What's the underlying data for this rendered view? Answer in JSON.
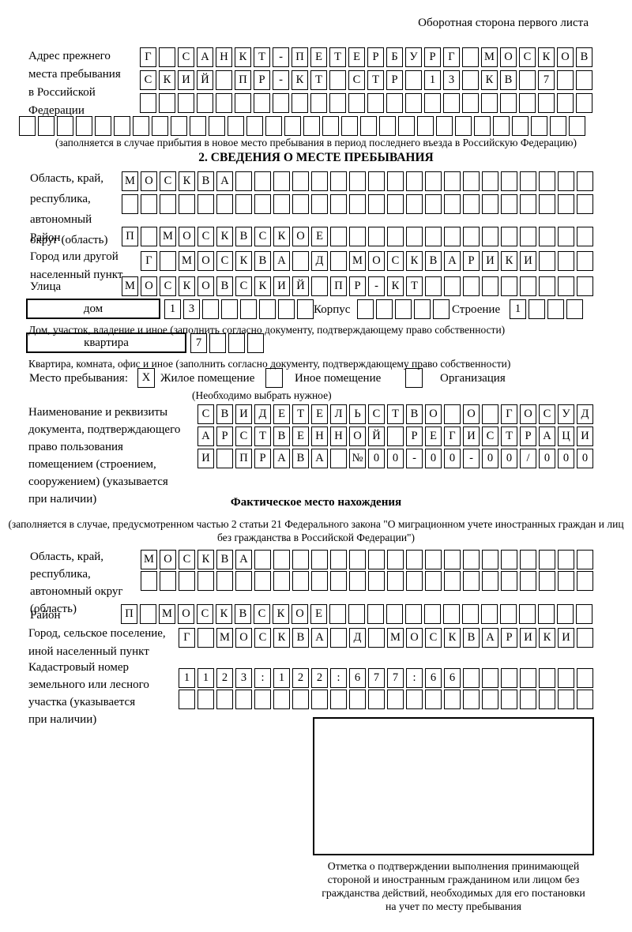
{
  "colors": {
    "ink": "#000000",
    "paper": "#ffffff"
  },
  "page": {
    "corner_note": "Оборотная сторона первого листа"
  },
  "prev_address": {
    "label_lines": [
      "Адрес прежнего",
      "места пребывания",
      "в Российской",
      "Федерации"
    ],
    "rows": [
      [
        "Г",
        "",
        "С",
        "А",
        "Н",
        "К",
        "Т",
        "-",
        "П",
        "Е",
        "Т",
        "Е",
        "Р",
        "Б",
        "У",
        "Р",
        "Г",
        "",
        "М",
        "О",
        "С",
        "К",
        "О",
        "В"
      ],
      [
        "С",
        "К",
        "И",
        "Й",
        "",
        "П",
        "Р",
        "-",
        "К",
        "Т",
        "",
        "С",
        "Т",
        "Р",
        "",
        "1",
        "3",
        "",
        "К",
        "В",
        "",
        "7",
        "",
        ""
      ],
      [
        "",
        "",
        "",
        "",
        "",
        "",
        "",
        "",
        "",
        "",
        "",
        "",
        "",
        "",
        "",
        "",
        "",
        "",
        "",
        "",
        "",
        "",
        "",
        ""
      ]
    ],
    "row4": [
      "",
      "",
      "",
      "",
      "",
      "",
      "",
      "",
      "",
      "",
      "",
      "",
      "",
      "",
      "",
      "",
      "",
      "",
      "",
      "",
      "",
      "",
      "",
      "",
      "",
      "",
      "",
      "",
      "",
      ""
    ],
    "note": "(заполняется в случае прибытия в новое место пребывания в период последнего въезда в Российскую Федерацию)"
  },
  "section2": {
    "title": "2. СВЕДЕНИЯ О МЕСТЕ ПРЕБЫВАНИЯ",
    "region": {
      "label_lines": [
        "Область, край,",
        "республика,",
        "автономный",
        "округ (область)"
      ],
      "rows": [
        [
          "М",
          "О",
          "С",
          "К",
          "В",
          "А",
          "",
          "",
          "",
          "",
          "",
          "",
          "",
          "",
          "",
          "",
          "",
          "",
          "",
          "",
          "",
          "",
          "",
          "",
          ""
        ],
        [
          "",
          "",
          "",
          "",
          "",
          "",
          "",
          "",
          "",
          "",
          "",
          "",
          "",
          "",
          "",
          "",
          "",
          "",
          "",
          "",
          "",
          "",
          "",
          "",
          ""
        ]
      ]
    },
    "district": {
      "label": "Район",
      "cells": [
        "П",
        "",
        "М",
        "О",
        "С",
        "К",
        "В",
        "С",
        "К",
        "О",
        "Е",
        "",
        "",
        "",
        "",
        "",
        "",
        "",
        "",
        "",
        "",
        "",
        "",
        "",
        ""
      ]
    },
    "city": {
      "label_lines": [
        "Город или другой",
        "населенный пункт"
      ],
      "cells": [
        "Г",
        "",
        "М",
        "О",
        "С",
        "К",
        "В",
        "А",
        "",
        "Д",
        "",
        "М",
        "О",
        "С",
        "К",
        "В",
        "А",
        "Р",
        "И",
        "К",
        "И",
        "",
        "",
        ""
      ]
    },
    "street": {
      "label": "Улица",
      "cells": [
        "М",
        "О",
        "С",
        "К",
        "О",
        "В",
        "С",
        "К",
        "И",
        "Й",
        "",
        "П",
        "Р",
        "-",
        "К",
        "Т",
        "",
        "",
        "",
        "",
        "",
        "",
        "",
        "",
        ""
      ]
    },
    "house": {
      "box_label": "дом",
      "cells": [
        "1",
        "3",
        "",
        "",
        "",
        "",
        "",
        ""
      ],
      "korpus_label": "Корпус",
      "korpus_cells": [
        "",
        "",
        "",
        "",
        ""
      ],
      "stroenie_label": "Строение",
      "stroenie_cells": [
        "1",
        "",
        "",
        ""
      ]
    },
    "house_note": "Дом, участок, владение и иное (заполнить согласно документу, подтверждающему право собственности)",
    "apartment": {
      "box_label": "квартира",
      "cells": [
        "7",
        "",
        "",
        ""
      ]
    },
    "apartment_note": "Квартира, комната, офис и иное (заполнить согласно документу, подтверждающему право собственности)",
    "stay_type": {
      "label": "Место пребывания:",
      "options": [
        {
          "mark": "X",
          "label": "Жилое помещение"
        },
        {
          "mark": "",
          "label": "Иное помещение"
        },
        {
          "mark": "",
          "label": "Организация"
        }
      ],
      "note": "(Необходимо выбрать нужное)"
    },
    "document": {
      "label_lines": [
        "Наименование и реквизиты",
        "документа, подтверждающего",
        "право пользования",
        "помещением (строением,",
        "сооружением) (указывается",
        "при наличии)"
      ],
      "rows": [
        [
          "С",
          "В",
          "И",
          "Д",
          "Е",
          "Т",
          "Е",
          "Л",
          "Ь",
          "С",
          "Т",
          "В",
          "О",
          "",
          "О",
          "",
          "Г",
          "О",
          "С",
          "У",
          "Д"
        ],
        [
          "А",
          "Р",
          "С",
          "Т",
          "В",
          "Е",
          "Н",
          "Н",
          "О",
          "Й",
          "",
          "Р",
          "Е",
          "Г",
          "И",
          "С",
          "Т",
          "Р",
          "А",
          "Ц",
          "И"
        ],
        [
          "И",
          "",
          "П",
          "Р",
          "А",
          "В",
          "А",
          "",
          "№",
          "0",
          "0",
          "-",
          "0",
          "0",
          "-",
          "0",
          "0",
          "/",
          "0",
          "0",
          "0"
        ]
      ]
    }
  },
  "actual_location": {
    "title": "Фактическое место нахождения",
    "note_lines": [
      "(заполняется в случае, предусмотренном частью 2 статьи 21 Федерального закона",
      "\"О миграционном учете иностранных граждан и лиц без гражданства в Российской Федерации\")"
    ],
    "region": {
      "label_lines": [
        "Область, край,",
        "республика,",
        "автономный округ",
        "(область)"
      ],
      "rows": [
        [
          "М",
          "О",
          "С",
          "К",
          "В",
          "А",
          "",
          "",
          "",
          "",
          "",
          "",
          "",
          "",
          "",
          "",
          "",
          "",
          "",
          "",
          "",
          "",
          "",
          ""
        ],
        [
          "",
          "",
          "",
          "",
          "",
          "",
          "",
          "",
          "",
          "",
          "",
          "",
          "",
          "",
          "",
          "",
          "",
          "",
          "",
          "",
          "",
          "",
          "",
          ""
        ]
      ]
    },
    "district": {
      "label": "Район",
      "cells": [
        "П",
        "",
        "М",
        "О",
        "С",
        "К",
        "В",
        "С",
        "К",
        "О",
        "Е",
        "",
        "",
        "",
        "",
        "",
        "",
        "",
        "",
        "",
        "",
        "",
        "",
        "",
        ""
      ]
    },
    "city": {
      "label_lines": [
        "Город, сельское поселение,",
        "иной населенный пункт"
      ],
      "cells": [
        "Г",
        "",
        "М",
        "О",
        "С",
        "К",
        "В",
        "А",
        "",
        "Д",
        "",
        "М",
        "О",
        "С",
        "К",
        "В",
        "А",
        "Р",
        "И",
        "К",
        "И",
        ""
      ]
    },
    "cadastral": {
      "label_lines": [
        "Кадастровый номер",
        "земельного или лесного",
        "участка (указывается",
        "при наличии)"
      ],
      "rows": [
        [
          "1",
          "1",
          "2",
          "3",
          ":",
          "1",
          "2",
          "2",
          ":",
          "6",
          "7",
          "7",
          ":",
          "6",
          "6",
          "",
          "",
          "",
          "",
          "",
          "",
          ""
        ],
        [
          "",
          "",
          "",
          "",
          "",
          "",
          "",
          "",
          "",
          "",
          "",
          "",
          "",
          "",
          "",
          "",
          "",
          "",
          "",
          "",
          "",
          ""
        ]
      ]
    }
  },
  "confirmation": {
    "note_lines": [
      "Отметка о подтверждении выполнения принимающей",
      "стороной и иностранным гражданином или лицом без",
      "гражданства действий, необходимых для его постановки",
      "на учет по месту пребывания"
    ]
  }
}
